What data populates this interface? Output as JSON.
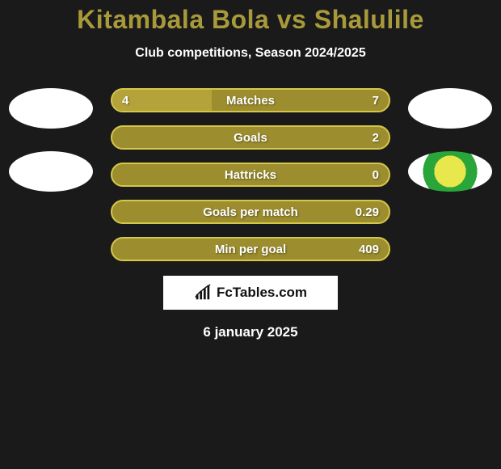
{
  "title": "Kitambala Bola vs Shalulile",
  "subtitle": "Club competitions, Season 2024/2025",
  "bars": [
    {
      "label": "Matches",
      "left": "4",
      "right": "7",
      "fill_pct": 36
    },
    {
      "label": "Goals",
      "left": "",
      "right": "2",
      "fill_pct": 0
    },
    {
      "label": "Hattricks",
      "left": "",
      "right": "0",
      "fill_pct": 0
    },
    {
      "label": "Goals per match",
      "left": "",
      "right": "0.29",
      "fill_pct": 0
    },
    {
      "label": "Min per goal",
      "left": "",
      "right": "409",
      "fill_pct": 0
    }
  ],
  "brand": "FcTables.com",
  "date": "6 january 2025",
  "colors": {
    "background": "#1a1a1a",
    "accent": "#a89a3a",
    "bar_bg": "#9c8d2e",
    "bar_border": "#d4c74a",
    "bar_fill": "#b3a33a",
    "white": "#ffffff"
  },
  "left_logos": [
    "white",
    "white"
  ],
  "right_logos": [
    "white",
    "green"
  ]
}
